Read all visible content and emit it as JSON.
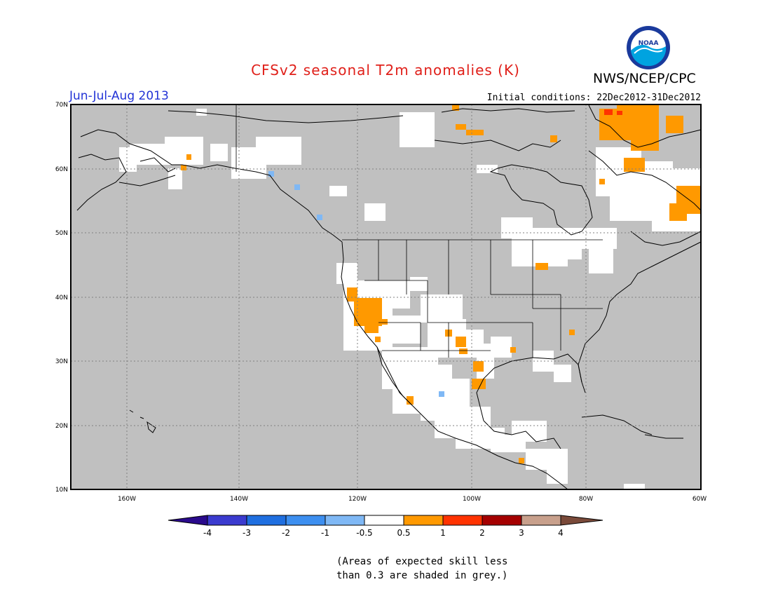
{
  "title": "CFSv2 seasonal T2m anomalies (K)",
  "organization": "NWS/NCEP/CPC",
  "logo_text": "NOAA",
  "period": "Jun-Jul-Aug 2013",
  "initial_conditions": "Initial conditions: 22Dec2012-31Dec2012",
  "footnote_line1": "(Areas of expected skill less",
  "footnote_line2": "than 0.3 are shaded in grey.)",
  "map": {
    "projection": "lat-lon",
    "lon_range": [
      -172,
      -60
    ],
    "lat_range": [
      10,
      70
    ],
    "lat_ticks": [
      "10N",
      "20N",
      "30N",
      "40N",
      "50N",
      "60N",
      "70N"
    ],
    "lon_ticks": [
      "160W",
      "140W",
      "120W",
      "100W",
      "80W",
      "60W"
    ],
    "background_color": "#c0c0c0",
    "grid": "dotted"
  },
  "colorbar": {
    "tick_labels": [
      "-4",
      "-3",
      "-2",
      "-1",
      "-0.5",
      "0.5",
      "1",
      "2",
      "3",
      "4"
    ],
    "colors": [
      "#2a0a8c",
      "#3b3bcf",
      "#1f6fe0",
      "#3d8ff0",
      "#7fb8f5",
      "#ffffff",
      "#ff9900",
      "#ff3300",
      "#a50000",
      "#c8a08c",
      "#7a4a3a"
    ]
  },
  "legend": {
    "grey_meaning": "skill < 0.3",
    "white_meaning": "-0.5 to 0.5 K"
  }
}
